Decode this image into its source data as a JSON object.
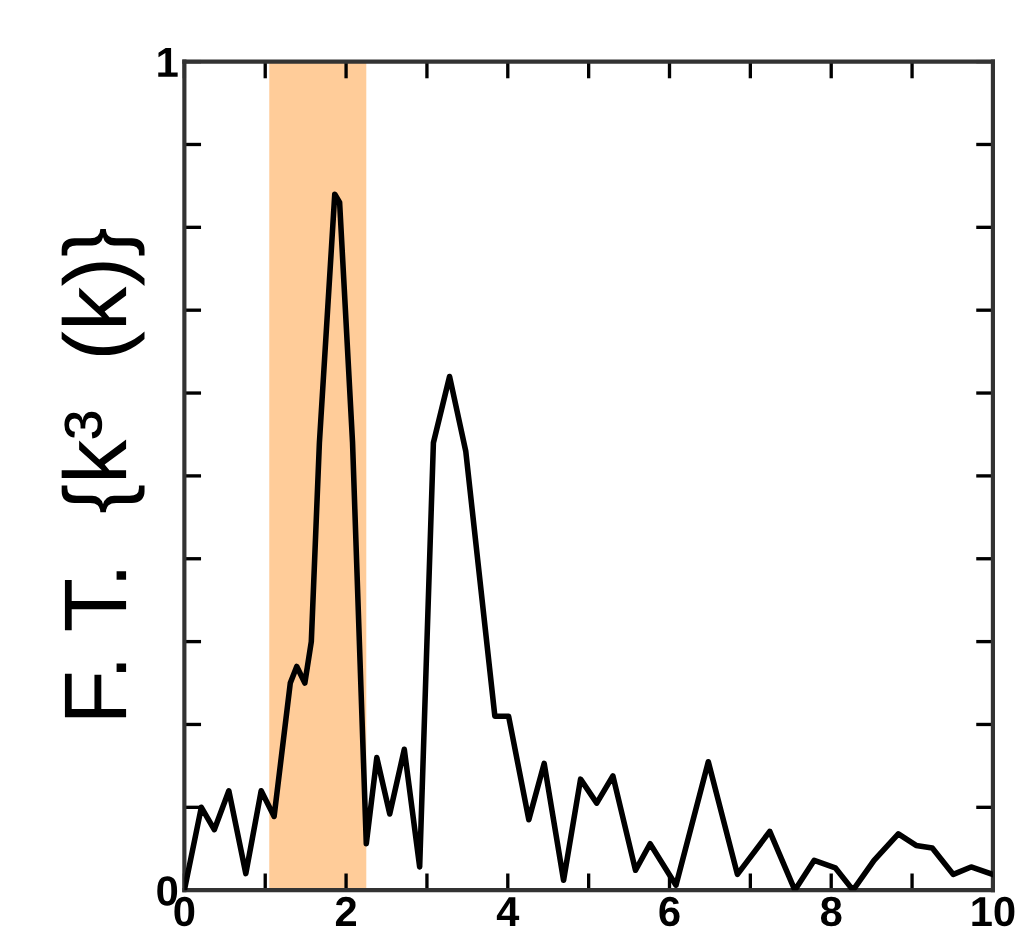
{
  "chart_data": {
    "type": "line",
    "ylabel": "F. T.  {k³  (k)}",
    "x": [
      0,
      0.21,
      0.37,
      0.55,
      0.76,
      0.95,
      1.11,
      1.31,
      1.39,
      1.49,
      1.57,
      1.67,
      1.86,
      1.92,
      2.08,
      2.25,
      2.38,
      2.54,
      2.72,
      2.91,
      3.08,
      3.28,
      3.48,
      3.84,
      4.01,
      4.26,
      4.45,
      4.69,
      4.9,
      5.1,
      5.3,
      5.58,
      5.76,
      6.08,
      6.48,
      6.84,
      7.24,
      7.55,
      7.79,
      8.05,
      8.27,
      8.53,
      8.83,
      9.05,
      9.25,
      9.51,
      9.73,
      10
    ],
    "series": [
      {
        "color": "#000000",
        "values": [
          0,
          0.1,
          0.073,
          0.12,
          0.02,
          0.12,
          0.089,
          0.25,
          0.27,
          0.25,
          0.3,
          0.54,
          0.84,
          0.83,
          0.54,
          0.056,
          0.16,
          0.092,
          0.17,
          0.028,
          0.54,
          0.62,
          0.53,
          0.21,
          0.21,
          0.085,
          0.153,
          0.012,
          0.134,
          0.105,
          0.138,
          0.024,
          0.056,
          0.006,
          0.155,
          0.019,
          0.071,
          0,
          0.036,
          0.027,
          0,
          0.036,
          0.068,
          0.054,
          0.051,
          0.019,
          0.028,
          0.019
        ]
      }
    ],
    "xlim": [
      0,
      10
    ],
    "ylim": [
      0,
      1
    ],
    "xticks": [
      0,
      {
        "value": 1,
        "label": null
      },
      2,
      {
        "value": 3,
        "label": null
      },
      4,
      {
        "value": 5,
        "label": null
      },
      6,
      {
        "value": 7,
        "label": null
      },
      8,
      {
        "value": 9,
        "label": null
      },
      10
    ],
    "yticks": [
      0,
      {
        "value": 0.1,
        "label": null
      },
      {
        "value": 0.2,
        "label": null
      },
      {
        "value": 0.3,
        "label": null
      },
      {
        "value": 0.4,
        "label": null
      },
      {
        "value": 0.5,
        "label": null
      },
      {
        "value": 0.6,
        "label": null
      },
      {
        "value": 0.7,
        "label": null
      },
      {
        "value": 0.8,
        "label": null
      },
      {
        "value": 0.9,
        "label": null
      },
      1
    ],
    "bands": [
      {
        "axis": "x",
        "from": 1.05,
        "to": 2.25,
        "color": "#ffcc99"
      }
    ],
    "grid": false,
    "legend": false,
    "marker": "none",
    "line_style": "solid"
  }
}
